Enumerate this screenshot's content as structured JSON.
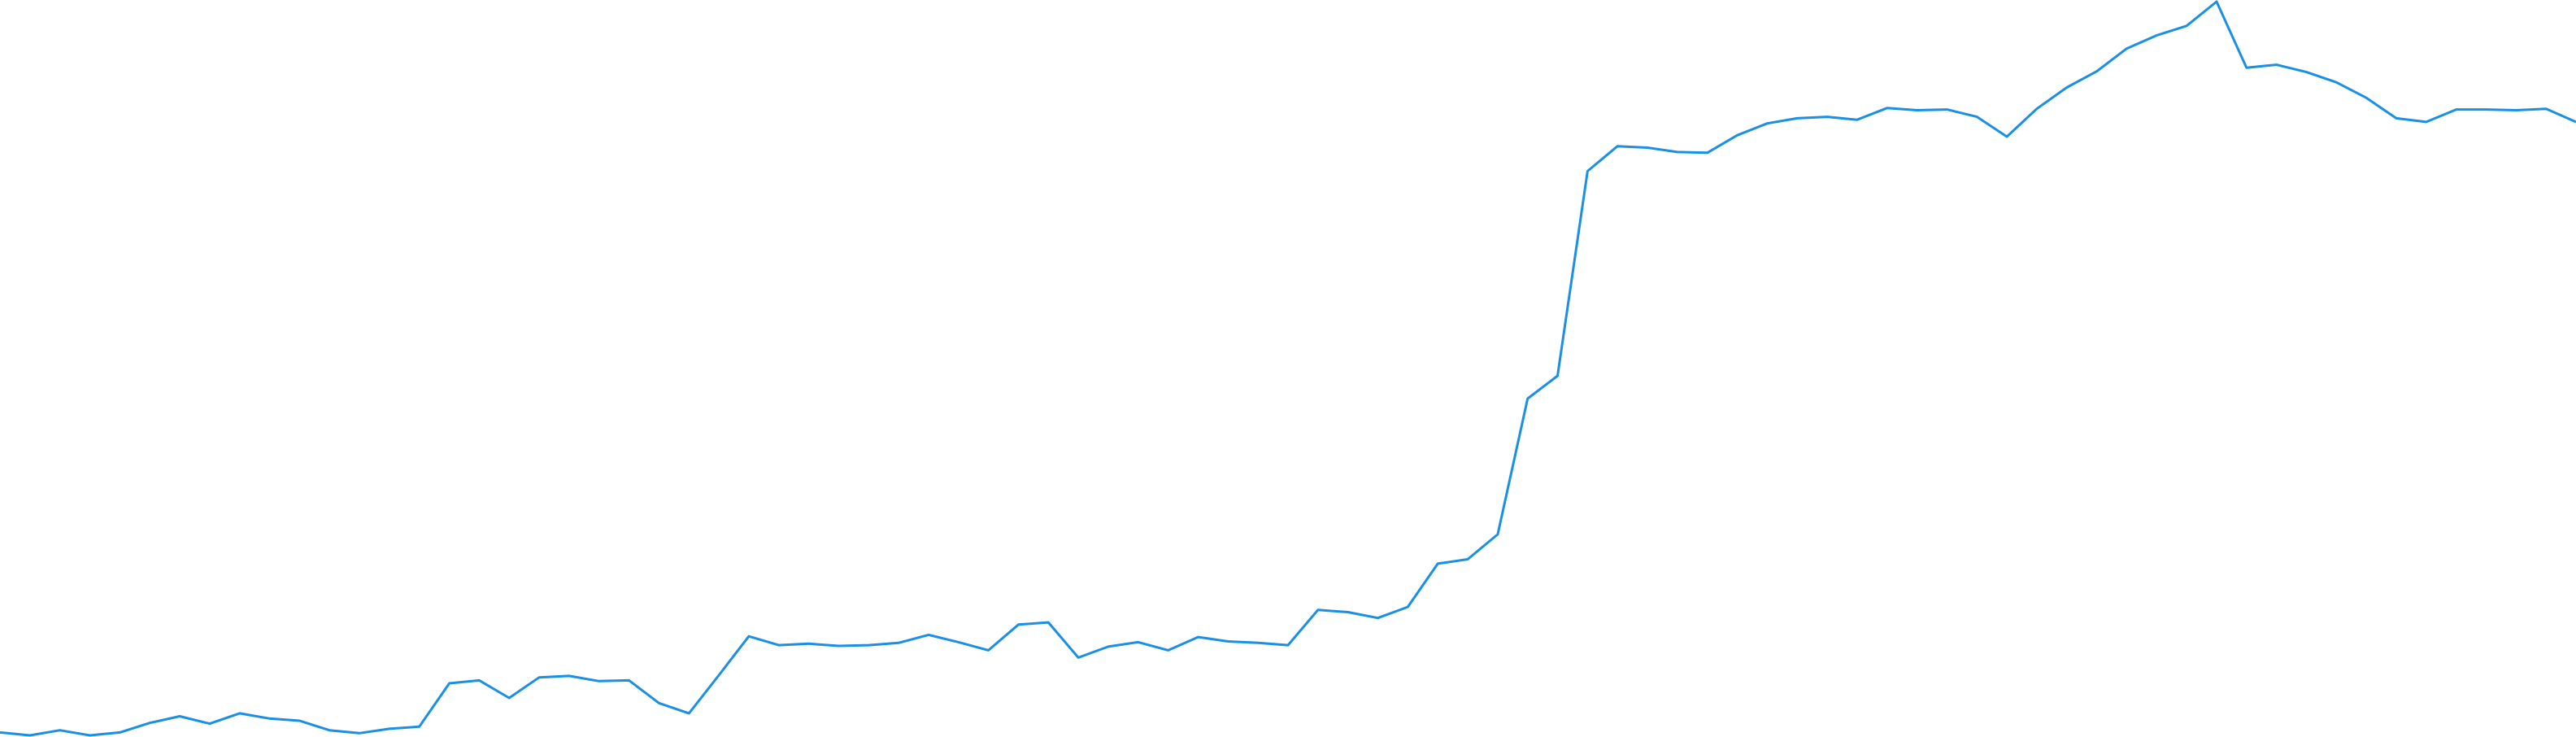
{
  "chart_data": {
    "type": "line",
    "title": "",
    "xlabel": "",
    "ylabel": "",
    "grid": false,
    "legend": "none",
    "ylim": [
      0,
      100
    ],
    "x": [
      1,
      2,
      3,
      4,
      5,
      6,
      7,
      8,
      9,
      10,
      11,
      12,
      13,
      14,
      15,
      16,
      17,
      18,
      19,
      20,
      21,
      22,
      23,
      24,
      25,
      26,
      27,
      28,
      29,
      30,
      31,
      32,
      33,
      34,
      35,
      36,
      37,
      38,
      39,
      40,
      41,
      42,
      43,
      44,
      45,
      46,
      47,
      48,
      49,
      50,
      51,
      52,
      53,
      54,
      55,
      56,
      57,
      58,
      59,
      60,
      61,
      62,
      63,
      64,
      65,
      66,
      67,
      68,
      69,
      70,
      71,
      72,
      73,
      74,
      75,
      76,
      77,
      78,
      79,
      80,
      81,
      82,
      83,
      84,
      85,
      86,
      87
    ],
    "series": [
      {
        "values": [
          0.4,
          0.0,
          0.7,
          0.0,
          0.4,
          1.7,
          2.6,
          1.6,
          3.0,
          2.3,
          2.0,
          0.7,
          0.3,
          0.9,
          1.2,
          7.1,
          7.5,
          5.1,
          7.9,
          8.1,
          7.4,
          7.5,
          4.4,
          3.0,
          8.2,
          13.5,
          12.3,
          12.5,
          12.2,
          12.3,
          12.6,
          13.7,
          12.7,
          11.6,
          15.1,
          15.4,
          10.6,
          12.1,
          12.7,
          11.6,
          13.4,
          12.8,
          12.6,
          12.3,
          17.1,
          16.8,
          16.0,
          17.5,
          23.4,
          24.0,
          27.4,
          45.9,
          49.0,
          76.9,
          80.3,
          80.1,
          79.5,
          79.4,
          81.8,
          83.4,
          84.1,
          84.3,
          83.9,
          85.5,
          85.2,
          85.3,
          84.3,
          81.6,
          85.4,
          88.3,
          90.5,
          93.6,
          95.4,
          96.7,
          100.0,
          91.0,
          91.4,
          90.4,
          89.0,
          86.9,
          84.1,
          83.6,
          85.3,
          85.3,
          85.2,
          85.4,
          83.6
        ],
        "color": "#1a8fe3"
      }
    ]
  }
}
